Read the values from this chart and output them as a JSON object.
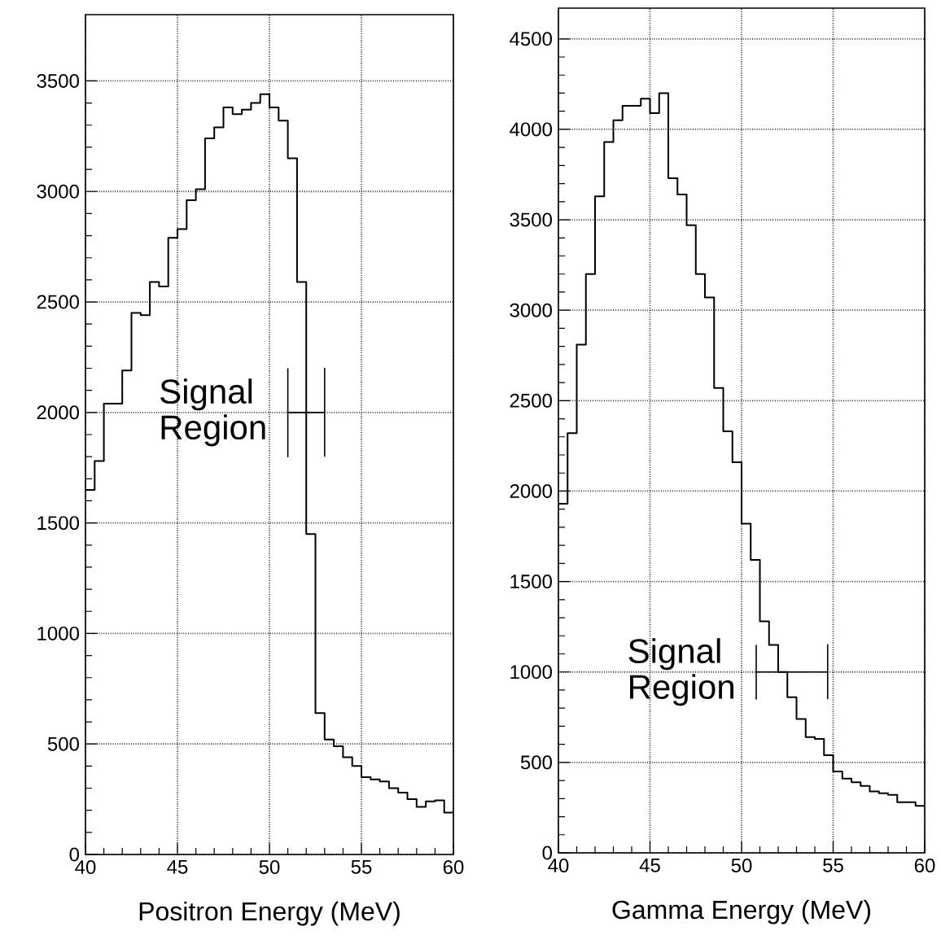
{
  "chart_data": [
    {
      "type": "histogram",
      "xlabel": "Positron Energy (MeV)",
      "marker": "none",
      "xlim": [
        40,
        60
      ],
      "ylim": [
        0,
        3800
      ],
      "xticks": [
        40,
        45,
        50,
        55,
        60
      ],
      "yticks": [
        0,
        500,
        1000,
        1500,
        2000,
        2500,
        3000,
        3500
      ],
      "grid": true,
      "series": [
        {
          "color": "#000000",
          "bins": [
            40,
            40.5,
            41,
            41.5,
            42,
            42.5,
            43,
            43.5,
            44,
            44.5,
            45,
            45.5,
            46,
            46.5,
            47,
            47.5,
            48,
            48.5,
            49,
            49.5,
            50,
            50.5,
            51,
            51.5,
            52,
            52.5,
            53,
            53.5,
            54,
            54.5,
            55,
            55.5,
            56,
            56.5,
            57,
            57.5,
            58,
            58.5,
            59,
            59.5,
            60
          ],
          "values": [
            1650,
            1780,
            2040,
            2040,
            2190,
            2450,
            2440,
            2590,
            2570,
            2790,
            2830,
            2960,
            3010,
            3240,
            3290,
            3380,
            3350,
            3370,
            3400,
            3440,
            3380,
            3320,
            3150,
            2590,
            1450,
            640,
            520,
            490,
            440,
            400,
            350,
            340,
            330,
            300,
            280,
            250,
            215,
            240,
            245,
            190
          ]
        },
        {
          "type": "line",
          "name": "Signal Region",
          "color": "#000000",
          "x": [
            51,
            51,
            51,
            53,
            53,
            53
          ],
          "values": [
            2200,
            1800,
            2000,
            2000,
            2200,
            1800
          ]
        }
      ]
    },
    {
      "type": "histogram",
      "xlabel": "Gamma Energy (MeV)",
      "marker": "none",
      "xlim": [
        40,
        60
      ],
      "ylim": [
        0,
        4670
      ],
      "xticks": [
        40,
        45,
        50,
        55,
        60
      ],
      "yticks": [
        0,
        500,
        1000,
        1500,
        2000,
        2500,
        3000,
        3500,
        4000,
        4500
      ],
      "grid": true,
      "series": [
        {
          "color": "#000000",
          "bins": [
            40,
            40.5,
            41,
            41.5,
            42,
            42.5,
            43,
            43.5,
            44,
            44.5,
            45,
            45.5,
            46,
            46.5,
            47,
            47.5,
            48,
            48.5,
            49,
            49.5,
            50,
            50.5,
            51,
            51.5,
            52,
            52.5,
            53,
            53.5,
            54,
            54.5,
            55,
            55.5,
            56,
            56.5,
            57,
            57.5,
            58,
            58.5,
            59,
            59.5,
            60
          ],
          "values": [
            1930,
            2320,
            2810,
            3200,
            3630,
            3930,
            4050,
            4130,
            4130,
            4170,
            4090,
            4200,
            3730,
            3640,
            3470,
            3200,
            3070,
            2570,
            2330,
            2160,
            1820,
            1620,
            1280,
            1150,
            1000,
            860,
            740,
            640,
            630,
            540,
            450,
            410,
            390,
            370,
            340,
            330,
            320,
            280,
            280,
            260
          ]
        },
        {
          "type": "line",
          "name": "Signal Region",
          "color": "#000000",
          "x": [
            50.8,
            50.8,
            50.8,
            54.7,
            54.7,
            54.7
          ],
          "values": [
            1150,
            850,
            1000,
            1000,
            1150,
            850
          ]
        }
      ]
    }
  ]
}
